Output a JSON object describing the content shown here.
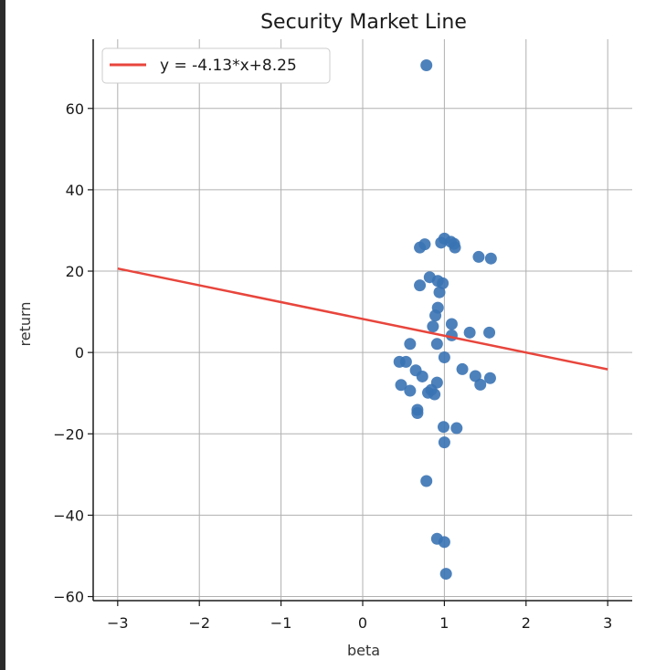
{
  "colors": {
    "background": "#ffffff",
    "grid": "#b0b0b0",
    "axis": "#1a1a1a",
    "point": "#3a73b4",
    "line": "#e8453c"
  },
  "chart_data": {
    "type": "scatter",
    "title": "Security Market Line",
    "xlabel": "beta",
    "ylabel": "return",
    "xlim": [
      -3.3,
      3.3
    ],
    "ylim": [
      -61,
      77
    ],
    "xticks": [
      -3,
      -2,
      -1,
      0,
      1,
      2,
      3
    ],
    "xtick_labels": [
      "−3",
      "−2",
      "−1",
      "0",
      "1",
      "2",
      "3"
    ],
    "yticks": [
      -60,
      -40,
      -20,
      0,
      20,
      40,
      60
    ],
    "ytick_labels": [
      "−60",
      "−40",
      "−20",
      "0",
      "20",
      "40",
      "60"
    ],
    "grid": true,
    "legend_position": "top-left",
    "series": [
      {
        "name": "y = -4.13*x+8.25",
        "kind": "line",
        "x": [
          -3,
          3
        ],
        "y": [
          20.64,
          -4.14
        ]
      },
      {
        "kind": "scatter",
        "x": [
          0.78,
          0.7,
          0.76,
          0.96,
          1.0,
          1.08,
          1.12,
          1.13,
          1.42,
          1.57,
          0.82,
          0.7,
          0.92,
          0.98,
          0.94,
          0.92,
          0.89,
          0.86,
          1.09,
          0.91,
          1.09,
          1.31,
          1.55,
          0.58,
          1.0,
          0.45,
          0.53,
          0.65,
          0.73,
          0.91,
          1.22,
          1.38,
          1.56,
          1.44,
          0.47,
          0.58,
          0.8,
          0.84,
          0.88,
          0.67,
          0.67,
          0.99,
          1.15,
          1.0,
          0.78,
          0.91,
          1.0,
          1.02
        ],
        "y": [
          70.6,
          25.8,
          26.6,
          27.0,
          28.0,
          27.2,
          26.7,
          25.8,
          23.5,
          23.1,
          18.5,
          16.5,
          17.6,
          17.0,
          14.8,
          11.0,
          9.1,
          6.4,
          7.0,
          2.1,
          4.2,
          4.9,
          4.9,
          2.1,
          -1.2,
          -2.3,
          -2.3,
          -4.4,
          -5.9,
          -7.4,
          -4.1,
          -5.8,
          -6.3,
          -7.9,
          -8.0,
          -9.4,
          -9.9,
          -9.2,
          -10.3,
          -14.1,
          -14.9,
          -18.3,
          -18.6,
          -22.1,
          -31.6,
          -45.8,
          -46.6,
          -54.4
        ]
      }
    ]
  }
}
